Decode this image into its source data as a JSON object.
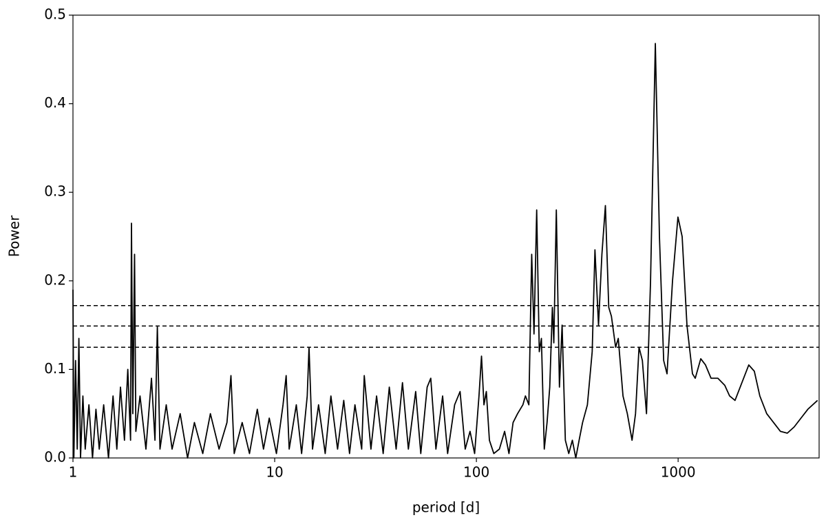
{
  "chart_data": {
    "type": "line",
    "x_label": "period [d]",
    "y_label": "Power",
    "log_x": true,
    "color": "#000000",
    "x": [
      1.0,
      1.01,
      1.03,
      1.05,
      1.07,
      1.09,
      1.12,
      1.15,
      1.2,
      1.25,
      1.3,
      1.35,
      1.42,
      1.5,
      1.58,
      1.65,
      1.72,
      1.8,
      1.87,
      1.93,
      1.95,
      1.98,
      2.02,
      2.05,
      2.15,
      2.3,
      2.45,
      2.55,
      2.62,
      2.7,
      2.9,
      3.1,
      3.4,
      3.7,
      4.0,
      4.4,
      4.8,
      5.3,
      5.8,
      6.07,
      6.3,
      6.9,
      7.5,
      8.2,
      8.8,
      9.4,
      10.2,
      11.0,
      11.4,
      11.8,
      12.8,
      13.6,
      14.5,
      14.8,
      15.4,
      16.5,
      17.8,
      19,
      20.5,
      22,
      23.5,
      25,
      27,
      27.8,
      30,
      32,
      34.5,
      37,
      40,
      43,
      46,
      50,
      53,
      57,
      59.4,
      63,
      68,
      72,
      78,
      83,
      88,
      93,
      98,
      103,
      106,
      109,
      112,
      116,
      122,
      130,
      138,
      145,
      152,
      160,
      170,
      175,
      182,
      188,
      193,
      199,
      205,
      210,
      217,
      224,
      231,
      238,
      242,
      249,
      258,
      266,
      276,
      287,
      299,
      311,
      323,
      336,
      355,
      375,
      387,
      403,
      419,
      436,
      453,
      467,
      490,
      505,
      533,
      560,
      591,
      615,
      640,
      665,
      697,
      730,
      771,
      808,
      848,
      881,
      938,
      998,
      1047,
      1106,
      1178,
      1216,
      1295,
      1367,
      1456,
      1574,
      1703,
      1800,
      1915,
      2071,
      2240,
      2386,
      2541,
      2749,
      2973,
      3215,
      3477,
      3760,
      4066,
      4397,
      4909
    ],
    "values": [
      0.19,
      0.0,
      0.11,
      0.01,
      0.135,
      0.0,
      0.07,
      0.01,
      0.06,
      0.0,
      0.055,
      0.01,
      0.06,
      0.0,
      0.07,
      0.01,
      0.08,
      0.02,
      0.1,
      0.02,
      0.265,
      0.05,
      0.23,
      0.03,
      0.07,
      0.01,
      0.09,
      0.02,
      0.148,
      0.01,
      0.06,
      0.01,
      0.05,
      0.0,
      0.04,
      0.005,
      0.05,
      0.01,
      0.04,
      0.093,
      0.005,
      0.04,
      0.005,
      0.055,
      0.01,
      0.045,
      0.005,
      0.06,
      0.093,
      0.01,
      0.06,
      0.005,
      0.07,
      0.125,
      0.01,
      0.06,
      0.005,
      0.07,
      0.01,
      0.065,
      0.005,
      0.06,
      0.01,
      0.093,
      0.01,
      0.07,
      0.005,
      0.08,
      0.01,
      0.085,
      0.01,
      0.075,
      0.005,
      0.08,
      0.09,
      0.01,
      0.07,
      0.005,
      0.06,
      0.075,
      0.01,
      0.03,
      0.005,
      0.07,
      0.115,
      0.06,
      0.075,
      0.02,
      0.005,
      0.01,
      0.03,
      0.005,
      0.04,
      0.05,
      0.06,
      0.07,
      0.06,
      0.23,
      0.14,
      0.28,
      0.12,
      0.135,
      0.01,
      0.04,
      0.08,
      0.17,
      0.13,
      0.28,
      0.08,
      0.15,
      0.02,
      0.005,
      0.02,
      0.0,
      0.02,
      0.04,
      0.06,
      0.12,
      0.235,
      0.15,
      0.23,
      0.285,
      0.17,
      0.16,
      0.125,
      0.135,
      0.07,
      0.05,
      0.02,
      0.05,
      0.125,
      0.11,
      0.05,
      0.2,
      0.468,
      0.25,
      0.11,
      0.095,
      0.2,
      0.272,
      0.25,
      0.15,
      0.095,
      0.09,
      0.112,
      0.105,
      0.09,
      0.09,
      0.082,
      0.07,
      0.065,
      0.085,
      0.105,
      0.098,
      0.07,
      0.05,
      0.04,
      0.03,
      0.028,
      0.035,
      0.045,
      0.055,
      0.065
    ],
    "hlines": [
      0.172,
      0.149,
      0.125
    ],
    "xlim": [
      1,
      5000
    ],
    "xticks": [
      1,
      10,
      100,
      1000
    ],
    "ylim": [
      0,
      0.5
    ],
    "yticks": [
      {
        "value": 0,
        "label": "0.0"
      },
      0.1,
      0.2,
      0.3,
      0.4,
      0.5
    ]
  }
}
